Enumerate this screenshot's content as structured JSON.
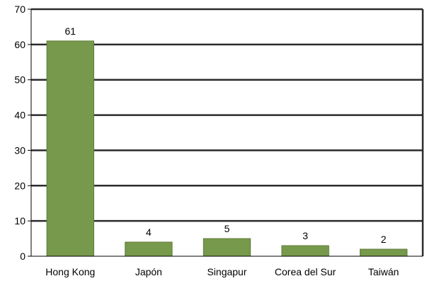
{
  "chart_data": {
    "type": "bar",
    "categories": [
      "Hong Kong",
      "Japón",
      "Singapur",
      "Corea del Sur",
      "Taiwán"
    ],
    "values": [
      61,
      4,
      5,
      3,
      2
    ],
    "data_labels": [
      "61",
      "4",
      "5",
      "3",
      "2"
    ],
    "title": "",
    "xlabel": "",
    "ylabel": "",
    "ylim": [
      0,
      70
    ],
    "yticks": [
      0,
      10,
      20,
      30,
      40,
      50,
      60,
      70
    ],
    "grid": true,
    "legend": "none",
    "bar_color": "#77994b",
    "bar_edge_color": "#5e7c39",
    "grid_color": "#2b2b2b"
  }
}
